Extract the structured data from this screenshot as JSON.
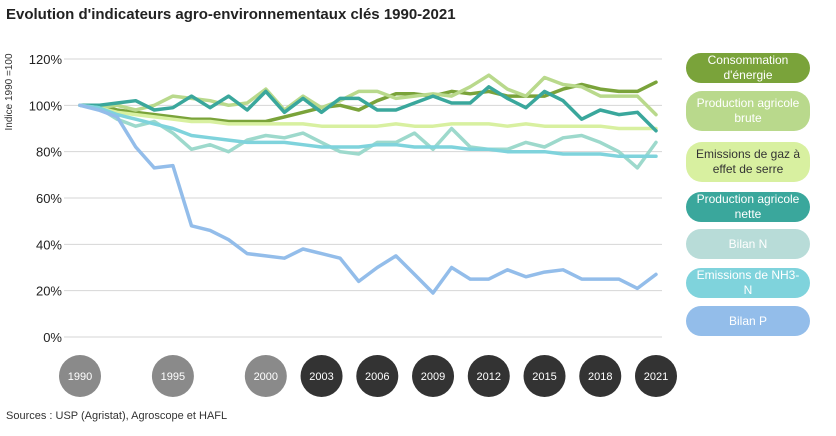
{
  "title": "Evolution d'indicateurs agro-environnementaux clés 1990-2021",
  "source": "Sources : USP (Agristat), Agroscope et HAFL",
  "chart_data": {
    "type": "line",
    "ylabel": "Indice 1990 =100",
    "ylim": [
      0,
      120
    ],
    "y_ticks": [
      "0%",
      "20%",
      "40%",
      "60%",
      "80%",
      "100%",
      "120%"
    ],
    "x_ticks": [
      "1990",
      "1995",
      "2000",
      "2003",
      "2006",
      "2009",
      "2012",
      "2015",
      "2018",
      "2021"
    ],
    "x": [
      1990,
      1991,
      1992,
      1993,
      1994,
      1995,
      1996,
      1997,
      1998,
      1999,
      2000,
      2001,
      2002,
      2003,
      2004,
      2005,
      2006,
      2007,
      2008,
      2009,
      2010,
      2011,
      2012,
      2013,
      2014,
      2015,
      2016,
      2017,
      2018,
      2019,
      2020,
      2021
    ],
    "grid": true,
    "legend": "right",
    "series": [
      {
        "name": "Consommation d'énergie",
        "color": "#7aa33a",
        "values": [
          100,
          100,
          98,
          97,
          96,
          95,
          94,
          94,
          93,
          93,
          93,
          95,
          97,
          99,
          100,
          98,
          102,
          105,
          105,
          104,
          106,
          105,
          106,
          104,
          104,
          104,
          107,
          109,
          107,
          106,
          106,
          110
        ]
      },
      {
        "name": "Production agricole brute",
        "color": "#b9d98c",
        "values": [
          100,
          99,
          100,
          98,
          100,
          104,
          103,
          102,
          100,
          101,
          107,
          98,
          104,
          99,
          102,
          106,
          106,
          103,
          104,
          105,
          104,
          108,
          113,
          107,
          104,
          112,
          109,
          108,
          104,
          104,
          104,
          96
        ]
      },
      {
        "name": "Emissions de gaz à effet de serre",
        "color": "#d8f0a0",
        "values": [
          100,
          99,
          97,
          96,
          95,
          94,
          93,
          93,
          92,
          92,
          92,
          92,
          92,
          91,
          91,
          91,
          91,
          92,
          91,
          91,
          92,
          92,
          92,
          91,
          92,
          91,
          91,
          91,
          91,
          90,
          90,
          90
        ]
      },
      {
        "name": "Production agricole nette",
        "color": "#3aa79c",
        "values": [
          100,
          100,
          101,
          102,
          98,
          99,
          104,
          99,
          104,
          98,
          106,
          97,
          103,
          97,
          103,
          103,
          98,
          98,
          101,
          104,
          101,
          101,
          108,
          103,
          99,
          106,
          102,
          94,
          98,
          96,
          97,
          89
        ]
      },
      {
        "name": "Bilan N",
        "color": "#9dd9cc",
        "values": [
          100,
          99,
          94,
          91,
          93,
          88,
          81,
          83,
          80,
          85,
          87,
          86,
          88,
          84,
          80,
          79,
          84,
          84,
          88,
          81,
          90,
          82,
          81,
          81,
          84,
          82,
          86,
          87,
          84,
          80,
          73,
          84
        ]
      },
      {
        "name": "Emissions de NH3-N",
        "color": "#7fd3dc",
        "values": [
          100,
          99,
          96,
          94,
          92,
          90,
          87,
          86,
          85,
          84,
          84,
          84,
          83,
          82,
          82,
          82,
          83,
          83,
          82,
          82,
          82,
          81,
          81,
          80,
          80,
          80,
          79,
          79,
          79,
          78,
          78,
          78
        ]
      },
      {
        "name": "Bilan P",
        "color": "#93bdea",
        "values": [
          100,
          98,
          95,
          82,
          73,
          74,
          48,
          46,
          42,
          36,
          35,
          34,
          38,
          36,
          34,
          24,
          30,
          35,
          27,
          19,
          30,
          25,
          25,
          29,
          26,
          28,
          29,
          25,
          25,
          25,
          21,
          27
        ]
      }
    ]
  },
  "legend_items": [
    {
      "label": "Consommation d'énergie",
      "color": "#7aa33a"
    },
    {
      "label": "Production agricole brute",
      "color": "#b9d98c"
    },
    {
      "label": "Emissions de gaz à effet de serre",
      "color": "#d8f0a0"
    },
    {
      "label": "Production agricole nette",
      "color": "#3aa79c"
    },
    {
      "label": "Bilan N",
      "color": "#b8dcd8"
    },
    {
      "label": "Emissions de NH3-N",
      "color": "#7fd3dc"
    },
    {
      "label": "Bilan P",
      "color": "#93bdea"
    }
  ],
  "tick_colors": {
    "light": "#8a8a8a",
    "dark": "#333333"
  }
}
